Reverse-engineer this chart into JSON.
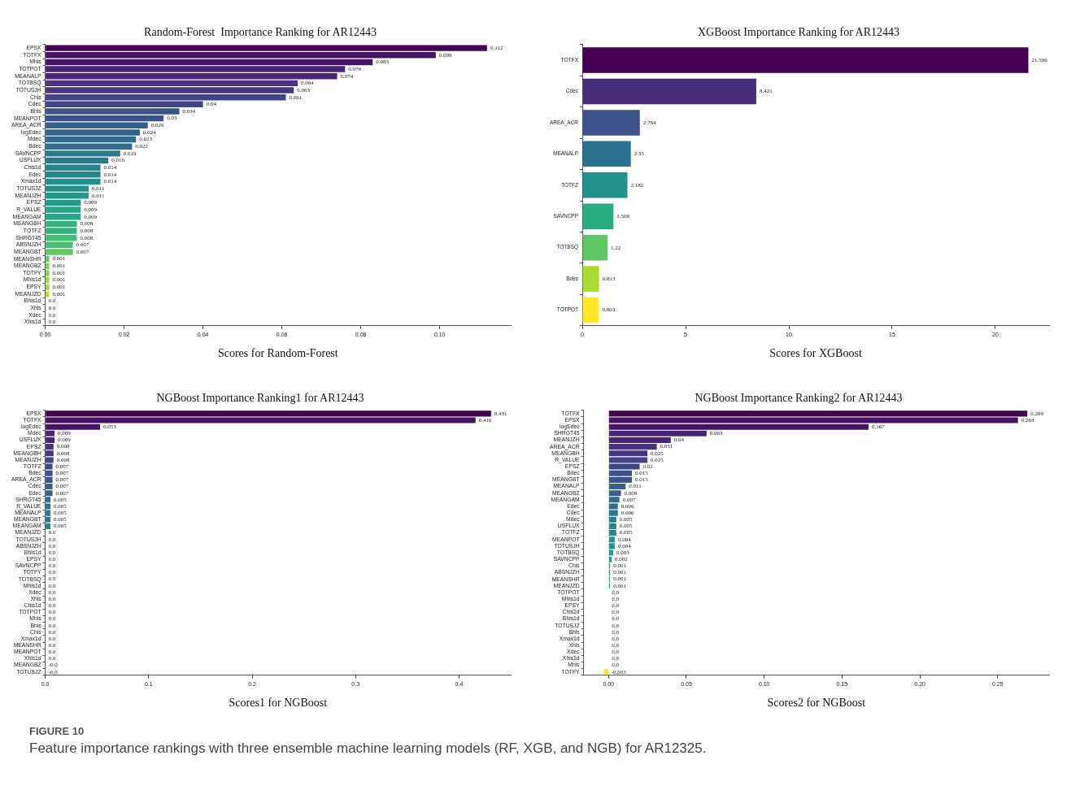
{
  "chart_data": [
    {
      "type": "bar",
      "orientation": "horizontal",
      "title": "Random-Forest  Importance Ranking for AR12443",
      "xlabel": "Scores for Random-Forest",
      "categories": [
        "EPSX",
        "TOTFX",
        "Mhis",
        "TOTPOT",
        "MEANALP",
        "TOTBSQ",
        "TOTUSJH",
        "Chis",
        "Cdec",
        "Bhis",
        "MEANPOT",
        "AREA_ACR",
        "logEdec",
        "Mdec",
        "Bdec",
        "SAVNCPP",
        "USFLUX",
        "Chis1d",
        "Edec",
        "Xmax1d",
        "TOTUSJZ",
        "MEANJZH",
        "EPSZ",
        "R_VALUE",
        "MEANGAM",
        "MEANGBH",
        "TOTFZ",
        "SHRGT45",
        "ABSNJZH",
        "MEANGBT",
        "MEANSHR",
        "MEANGBZ",
        "TOTFY",
        "Mhis1d",
        "EPSY",
        "MEANJZD",
        "Bhis1d",
        "Xhis",
        "Xdec",
        "Xhis1d"
      ],
      "values": [
        0.112,
        0.099,
        0.083,
        0.076,
        0.074,
        0.064,
        0.063,
        0.061,
        0.04,
        0.034,
        0.03,
        0.026,
        0.024,
        0.023,
        0.022,
        0.019,
        0.016,
        0.014,
        0.014,
        0.014,
        0.011,
        0.011,
        0.009,
        0.009,
        0.009,
        0.008,
        0.008,
        0.008,
        0.007,
        0.007,
        0.001,
        0.001,
        0.001,
        0.001,
        0.001,
        0.001,
        0,
        0,
        0,
        0
      ],
      "value_labels": [
        "0.112",
        "0.099",
        "0.083",
        "0.076",
        "0.074",
        "0.064",
        "0.063",
        "0.061",
        "0.04",
        "0.034",
        "0.03",
        "0.026",
        "0.024",
        "0.023",
        "0.022",
        "0.019",
        "0.016",
        "0.014",
        "0.014",
        "0.014",
        "0.011",
        "0.011",
        "0.009",
        "0.009",
        "0.009",
        "0.008",
        "0.008",
        "0.008",
        "0.007",
        "0.007",
        "0.001",
        "0.001",
        "0.001",
        "0.001",
        "0.001",
        "0.001",
        "0.0",
        "0.0",
        "0.0",
        "0.0"
      ],
      "colors": [
        "#440154",
        "#471365",
        "#471365",
        "#482475",
        "#482475",
        "#463480",
        "#463480",
        "#414487",
        "#414487",
        "#3b528b",
        "#3b528b",
        "#355f8d",
        "#355f8d",
        "#2f6c8e",
        "#2f6c8e",
        "#2a788e",
        "#2a788e",
        "#25848e",
        "#25848e",
        "#21918c",
        "#21918c",
        "#1e9c89",
        "#1e9c89",
        "#22a884",
        "#22a884",
        "#2fb47c",
        "#2fb47c",
        "#44bf70",
        "#44bf70",
        "#5ec962",
        "#5ec962",
        "#7ad151",
        "#7ad151",
        "#9bd93c",
        "#9bd93c",
        "#bddf26",
        "#bddf26",
        "#dfe318",
        "#dfe318",
        "#fde725"
      ],
      "xlim": [
        0,
        0.118
      ],
      "xticks": [
        {
          "value": 0,
          "label": "0.00"
        },
        {
          "value": 0.02,
          "label": "0.02"
        },
        {
          "value": 0.04,
          "label": "0.04"
        },
        {
          "value": 0.06,
          "label": "0.06"
        },
        {
          "value": 0.08,
          "label": "0.08"
        },
        {
          "value": 0.1,
          "label": "0.10"
        }
      ]
    },
    {
      "type": "bar",
      "orientation": "horizontal",
      "title": "XGBoost Importance Ranking for AR12443",
      "xlabel": "Scores for XGBoost",
      "categories": [
        "TOTFX",
        "Cdec",
        "AREA_ACR",
        "MEANALP",
        "TOTFZ",
        "SAVNCPP",
        "TOTBSQ",
        "Bdec",
        "TOTPOT"
      ],
      "values": [
        21.596,
        8.421,
        2.784,
        2.35,
        2.182,
        1.506,
        1.22,
        0.813,
        0.803
      ],
      "data_labels": true,
      "colors": [
        "#440154",
        "#472d7b",
        "#3b528b",
        "#2c728e",
        "#21918c",
        "#28ae80",
        "#5ec962",
        "#addc30",
        "#fde725"
      ],
      "xlim": [
        0,
        22.6
      ],
      "xticks": [
        0,
        5,
        10,
        15,
        20
      ]
    },
    {
      "type": "bar",
      "orientation": "horizontal",
      "title": "NGBoost Importance Ranking1 for AR12443",
      "xlabel": "Scores1 for NGBoost",
      "categories": [
        "EPSX",
        "TOTFX",
        "logEdec",
        "Mdec",
        "USFLUX",
        "EPSZ",
        "MEANGBH",
        "MEANJZH",
        "TOTFZ",
        "Bdec",
        "AREA_ACR",
        "Cdec",
        "Edec",
        "SHRGT45",
        "R_VALUE",
        "MEANALP",
        "MEANGBT",
        "MEANGAM",
        "MEANJZD",
        "TOTUSJH",
        "ABSNJZH",
        "Bhis1d",
        "EPSY",
        "SAVNCPP",
        "TOTFY",
        "TOTBSQ",
        "Mhis1d",
        "Xdec",
        "Xhis",
        "Chis1d",
        "TOTPOT",
        "Mhis",
        "Bhis",
        "Chis",
        "Xmax1d",
        "MEANSHR",
        "MEANPOT",
        "Xhis1d",
        "MEANGBZ",
        "TOTUSJZ"
      ],
      "values": [
        0.431,
        0.416,
        0.053,
        0.009,
        0.009,
        0.008,
        0.008,
        0.008,
        0.007,
        0.007,
        0.007,
        0.007,
        0.007,
        0.005,
        0.005,
        0.005,
        0.005,
        0.005,
        0,
        0,
        0,
        0,
        0,
        0,
        0,
        0,
        0,
        0,
        0,
        0,
        0,
        0,
        0,
        0,
        0,
        0,
        0,
        0,
        0,
        0
      ],
      "value_labels": [
        "0.431",
        "0.416",
        "0.053",
        "0.009",
        "0.009",
        "0.008",
        "0.008",
        "0.008",
        "0.007",
        "0.007",
        "0.007",
        "0.007",
        "0.007",
        "0.005",
        "0.005",
        "0.005",
        "0.005",
        "0.005",
        "0.0",
        "0.0",
        "0.0",
        "0.0",
        "0.0",
        "0.0",
        "0.0",
        "0.0",
        "0.0",
        "0.0",
        "0.0",
        "0.0",
        "0.0",
        "0.0",
        "0.0",
        "0.0",
        "0.0",
        "0.0",
        "0.0",
        "0.0",
        "-0.0",
        "-0.0"
      ],
      "colors": [
        "#440154",
        "#471365",
        "#471365",
        "#482475",
        "#482475",
        "#463480",
        "#463480",
        "#414487",
        "#414487",
        "#3b528b",
        "#3b528b",
        "#355f8d",
        "#355f8d",
        "#2f6c8e",
        "#2f6c8e",
        "#2a788e",
        "#2a788e",
        "#25848e",
        "#25848e",
        "#21918c",
        "#21918c",
        "#1e9c89",
        "#1e9c89",
        "#22a884",
        "#22a884",
        "#2fb47c",
        "#2fb47c",
        "#44bf70",
        "#44bf70",
        "#5ec962",
        "#5ec962",
        "#7ad151",
        "#7ad151",
        "#9bd93c",
        "#9bd93c",
        "#bddf26",
        "#bddf26",
        "#dfe318",
        "#dfe318",
        "#fde725"
      ],
      "xlim": [
        0,
        0.45
      ],
      "xticks": [
        {
          "value": 0,
          "label": "0.0"
        },
        {
          "value": 0.1,
          "label": "0.1"
        },
        {
          "value": 0.2,
          "label": "0.2"
        },
        {
          "value": 0.3,
          "label": "0.3"
        },
        {
          "value": 0.4,
          "label": "0.4"
        }
      ]
    },
    {
      "type": "bar",
      "orientation": "horizontal",
      "title": "NGBoost Importance Ranking2 for AR12443",
      "xlabel": "Scores2 for NGBoost",
      "categories": [
        "TOTFX",
        "EPSX",
        "logEdec",
        "SHRGT45",
        "MEANJZH",
        "AREA_ACR",
        "MEANGBH",
        "R_VALUE",
        "EPSZ",
        "Bdec",
        "MEANGBT",
        "MEANALP",
        "MEANGBZ",
        "MEANGAM",
        "Edec",
        "Cdec",
        "Mdec",
        "USFLUX",
        "TOTFZ",
        "MEANPOT",
        "TOTUSJH",
        "TOTBSQ",
        "SAVNCPP",
        "Chis",
        "ABSNJZH",
        "MEANSHR",
        "MEANJZD",
        "TOTPOT",
        "Mhis1d",
        "EPSY",
        "Chis1d",
        "Bhis1d",
        "TOTUSJZ",
        "Bhis",
        "Xmax1d",
        "Xhis",
        "Xdec",
        "Xhis1d",
        "Mhis",
        "TOTFY"
      ],
      "values": [
        0.269,
        0.263,
        0.167,
        0.063,
        0.04,
        0.031,
        0.025,
        0.025,
        0.02,
        0.015,
        0.015,
        0.011,
        0.008,
        0.007,
        0.006,
        0.006,
        0.005,
        0.005,
        0.005,
        0.004,
        0.004,
        0.003,
        0.002,
        0.001,
        0.001,
        0.001,
        0.001,
        0,
        0,
        0,
        0,
        0,
        0,
        0,
        0,
        0,
        0,
        0,
        0,
        -0.003
      ],
      "value_labels": [
        "0.269",
        "0.263",
        "0.167",
        "0.063",
        "0.04",
        "0.031",
        "0.025",
        "0.025",
        "0.02",
        "0.015",
        "0.015",
        "0.011",
        "0.008",
        "0.007",
        "0.006",
        "0.006",
        "0.005",
        "0.005",
        "0.005",
        "0.004",
        "0.004",
        "0.003",
        "0.002",
        "0.001",
        "0.001",
        "0.001",
        "0.001",
        "0.0",
        "0.0",
        "0.0",
        "0.0",
        "0.0",
        "0.0",
        "0.0",
        "0.0",
        "0.0",
        "0.0",
        "0.0",
        "0.0",
        "-0.003"
      ],
      "colors": [
        "#440154",
        "#471365",
        "#471365",
        "#482475",
        "#482475",
        "#463480",
        "#463480",
        "#414487",
        "#414487",
        "#3b528b",
        "#3b528b",
        "#355f8d",
        "#355f8d",
        "#2f6c8e",
        "#2f6c8e",
        "#2a788e",
        "#2a788e",
        "#25848e",
        "#25848e",
        "#21918c",
        "#21918c",
        "#1e9c89",
        "#1e9c89",
        "#22a884",
        "#22a884",
        "#2fb47c",
        "#2fb47c",
        "#44bf70",
        "#44bf70",
        "#5ec962",
        "#5ec962",
        "#7ad151",
        "#7ad151",
        "#9bd93c",
        "#9bd93c",
        "#bddf26",
        "#bddf26",
        "#dfe318",
        "#dfe318",
        "#fde725"
      ],
      "xlim": [
        -0.016,
        0.283
      ],
      "xticks": [
        {
          "value": 0,
          "label": "0.00"
        },
        {
          "value": 0.05,
          "label": "0.05"
        },
        {
          "value": 0.1,
          "label": "0.10"
        },
        {
          "value": 0.15,
          "label": "0.15"
        },
        {
          "value": 0.2,
          "label": "0.20"
        },
        {
          "value": 0.25,
          "label": "0.25"
        }
      ],
      "annotations": [
        "FIGURE 10",
        "Feature importance rankings with three ensemble machine learning models (RF, XGB, and NGB) for AR12325."
      ]
    }
  ]
}
